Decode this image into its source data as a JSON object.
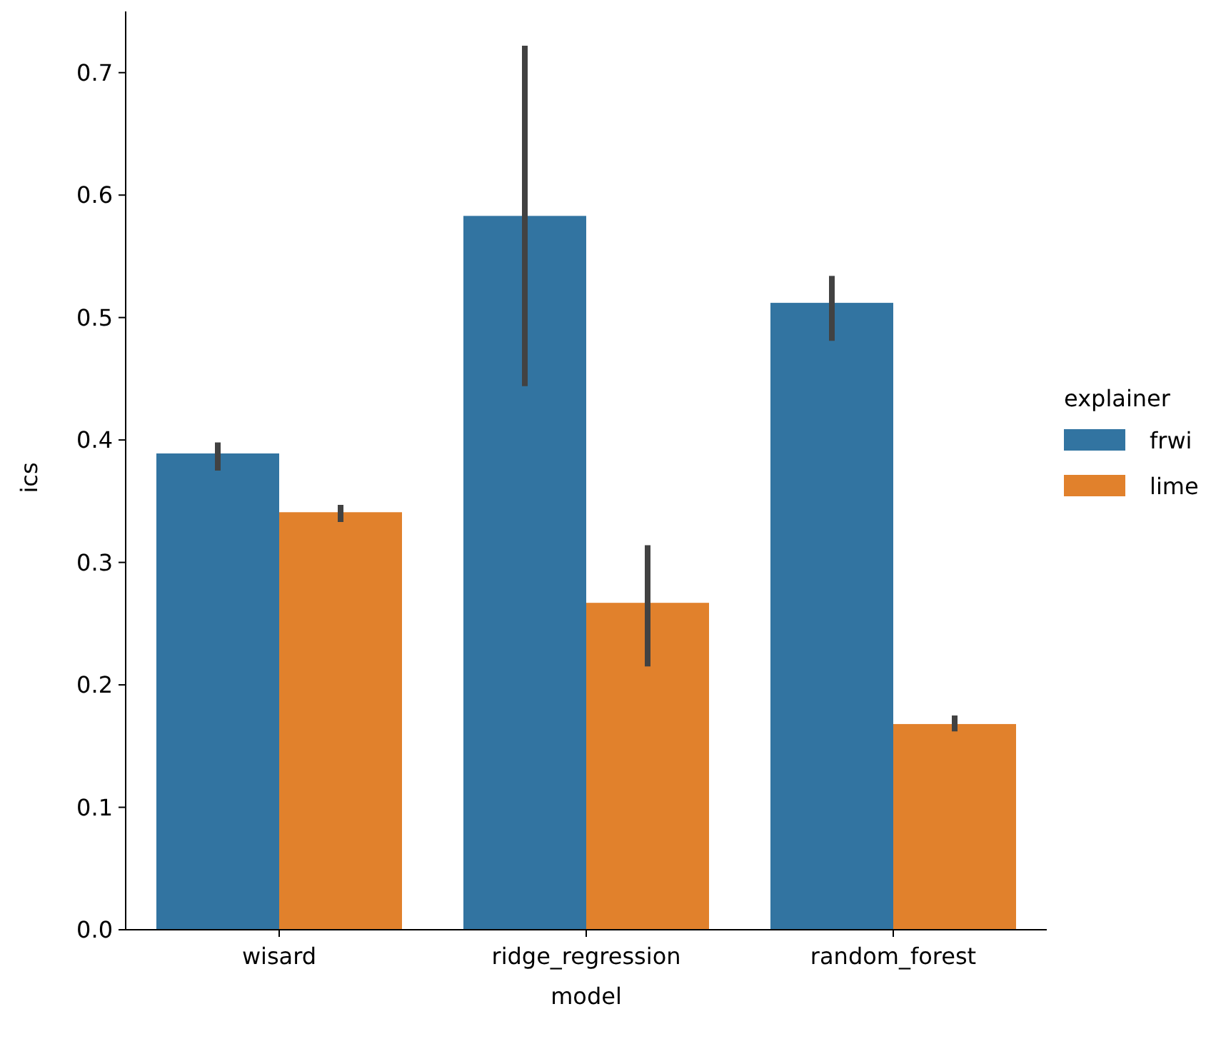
{
  "chart_data": {
    "type": "bar",
    "xlabel": "model",
    "ylabel": "ics",
    "legend_title": "explainer",
    "legend": "right",
    "grid": false,
    "categories": [
      "wisard",
      "ridge_regression",
      "random_forest"
    ],
    "ylim": [
      0,
      0.75
    ],
    "yticks": [
      {
        "value": 0,
        "label": "0.0"
      },
      0.1,
      0.2,
      0.3,
      0.4,
      0.5,
      0.6,
      0.7
    ],
    "series": [
      {
        "name": "frwi",
        "color": "#3274a1",
        "values": [
          0.389,
          0.583,
          0.512
        ],
        "errors": [
          [
            0.375,
            0.398
          ],
          [
            0.444,
            0.722
          ],
          [
            0.481,
            0.534
          ]
        ]
      },
      {
        "name": "lime",
        "color": "#e1812c",
        "values": [
          0.341,
          0.267,
          0.168
        ],
        "errors": [
          [
            0.333,
            0.347
          ],
          [
            0.215,
            0.314
          ],
          [
            0.162,
            0.175
          ]
        ]
      }
    ]
  }
}
